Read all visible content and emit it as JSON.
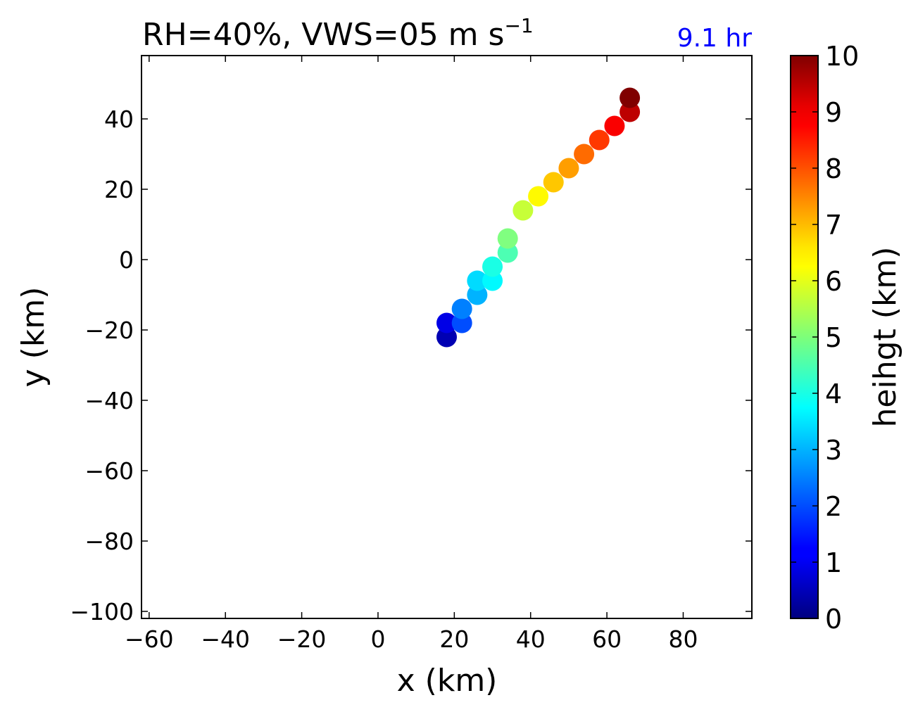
{
  "chart_data": {
    "type": "scatter",
    "title": "RH=40%, VWS=05 m s",
    "title_superscript": "−1",
    "time_label": "9.1 hr",
    "time_label_color": "#0000ff",
    "xlabel": "x (km)",
    "ylabel": "y (km)",
    "xlim": [
      -62,
      98
    ],
    "ylim": [
      -102,
      58
    ],
    "xticks": [
      -60,
      -40,
      -20,
      0,
      20,
      40,
      60,
      80
    ],
    "xtick_labels": [
      "−60",
      "−40",
      "−20",
      "0",
      "20",
      "40",
      "60",
      "80"
    ],
    "yticks": [
      40,
      20,
      0,
      -20,
      -40,
      -60,
      -80,
      -100
    ],
    "ytick_labels": [
      "40",
      "20",
      "0",
      "−20",
      "−40",
      "−60",
      "−80",
      "−100"
    ],
    "grid": false,
    "colormap": "jet",
    "colorbar": {
      "label": "heihgt (km)",
      "range": [
        0,
        10
      ],
      "ticks": [
        0,
        1,
        2,
        3,
        4,
        5,
        6,
        7,
        8,
        9,
        10
      ],
      "tick_labels": [
        "0",
        "1",
        "2",
        "3",
        "4",
        "5",
        "6",
        "7",
        "8",
        "9",
        "10"
      ]
    },
    "points": [
      {
        "x": 18,
        "y": -22,
        "height": 0.5
      },
      {
        "x": 18,
        "y": -18,
        "height": 1.0
      },
      {
        "x": 22,
        "y": -18,
        "height": 2.0
      },
      {
        "x": 22,
        "y": -14,
        "height": 2.5
      },
      {
        "x": 26,
        "y": -10,
        "height": 3.0
      },
      {
        "x": 26,
        "y": -6,
        "height": 3.4
      },
      {
        "x": 30,
        "y": -6,
        "height": 3.7
      },
      {
        "x": 30,
        "y": -2,
        "height": 4.0
      },
      {
        "x": 34,
        "y": 2,
        "height": 4.5
      },
      {
        "x": 34,
        "y": 6,
        "height": 5.0
      },
      {
        "x": 38,
        "y": 14,
        "height": 5.7
      },
      {
        "x": 42,
        "y": 18,
        "height": 6.3
      },
      {
        "x": 46,
        "y": 22,
        "height": 6.8
      },
      {
        "x": 50,
        "y": 26,
        "height": 7.2
      },
      {
        "x": 54,
        "y": 30,
        "height": 7.7
      },
      {
        "x": 58,
        "y": 34,
        "height": 8.2
      },
      {
        "x": 62,
        "y": 38,
        "height": 8.8
      },
      {
        "x": 66,
        "y": 42,
        "height": 9.4
      },
      {
        "x": 66,
        "y": 46,
        "height": 10.0
      }
    ]
  }
}
